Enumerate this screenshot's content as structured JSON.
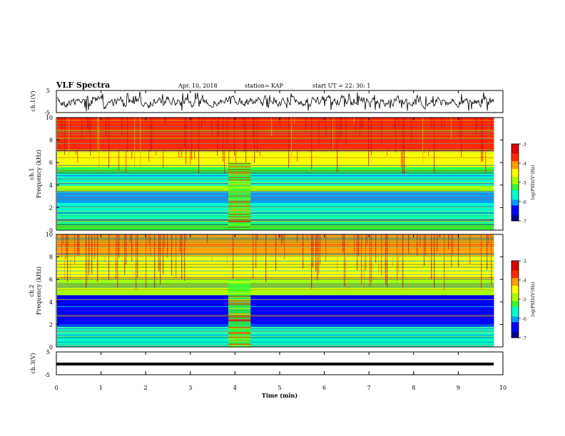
{
  "header": {
    "title": "VLF Spectra",
    "date": "Apr. 10, 2018",
    "station": "station= KAP",
    "start": "start  UT =   22: 30: 1"
  },
  "colors": {
    "scale": [
      "#00008b",
      "#0000ff",
      "#00a0ff",
      "#00ffcc",
      "#33ff33",
      "#aaff00",
      "#ffff00",
      "#ffa000",
      "#ff2800",
      "#dd0000"
    ],
    "trace": "#000000"
  },
  "chart_data": [
    {
      "type": "line",
      "name": "ch1-waveform",
      "ylabel": "ch.1(V)",
      "ylim": [
        -5,
        5
      ],
      "yticks": [
        "5",
        "-5"
      ],
      "xlim": [
        0,
        10
      ],
      "description_of_trace": "noisy waveform oscillating between about -5 and 5 V"
    },
    {
      "type": "heatmap",
      "name": "ch1-spectrogram",
      "ylabel": "ch.1\nFrequency (kHz)",
      "xlim": [
        0,
        10
      ],
      "ylim": [
        0,
        10
      ],
      "yticks": [
        "0",
        "2",
        "4",
        "6",
        "8",
        "10"
      ],
      "data_end_min": 9.8,
      "colorbar": {
        "label": "log(PSD)(V²/Hz)",
        "range": [
          -7,
          -3
        ],
        "ticks": [
          "-3",
          "-4",
          "-5",
          "-6",
          "-7"
        ]
      },
      "gap_interval_min": [
        3.85,
        4.35
      ],
      "bands_khz": [
        {
          "from": 0.0,
          "to": 0.6,
          "level": -5.3
        },
        {
          "from": 0.6,
          "to": 1.0,
          "level": -5.8
        },
        {
          "from": 1.0,
          "to": 2.0,
          "level": -5.6
        },
        {
          "from": 2.0,
          "to": 2.4,
          "level": -5.4
        },
        {
          "from": 2.4,
          "to": 3.4,
          "level": -6.0
        },
        {
          "from": 3.4,
          "to": 3.9,
          "level": -5.0
        },
        {
          "from": 3.9,
          "to": 5.0,
          "level": -5.6
        },
        {
          "from": 5.0,
          "to": 5.6,
          "level": -5.1
        },
        {
          "from": 5.6,
          "to": 7.0,
          "level": -4.4
        },
        {
          "from": 7.0,
          "to": 10.0,
          "level": -3.6
        }
      ]
    },
    {
      "type": "heatmap",
      "name": "ch2-spectrogram",
      "ylabel": "ch.2\nFrequency (kHz)",
      "xlim": [
        0,
        10
      ],
      "ylim": [
        0,
        10
      ],
      "yticks": [
        "0",
        "2",
        "4",
        "6",
        "8",
        "10"
      ],
      "data_end_min": 9.8,
      "colorbar": {
        "label": "log(PSD)(V²/Hz)",
        "range": [
          -7,
          -3
        ],
        "ticks": [
          "-3",
          "-4",
          "-5",
          "-6",
          "-7"
        ]
      },
      "gap_interval_min": [
        3.85,
        4.35
      ],
      "bands_khz": [
        {
          "from": 0.0,
          "to": 1.0,
          "level": -5.4
        },
        {
          "from": 1.0,
          "to": 1.8,
          "level": -5.8
        },
        {
          "from": 1.8,
          "to": 3.2,
          "level": -6.6
        },
        {
          "from": 3.2,
          "to": 4.6,
          "level": -6.3
        },
        {
          "from": 4.6,
          "to": 6.0,
          "level": -5.0
        },
        {
          "from": 6.0,
          "to": 8.0,
          "level": -4.5
        },
        {
          "from": 8.0,
          "to": 10.0,
          "level": -4.0
        }
      ]
    },
    {
      "type": "line",
      "name": "ch3-waveform",
      "ylabel": "ch.3(V)",
      "ylim": [
        -5,
        5
      ],
      "yticks": [
        "5",
        "-5"
      ],
      "xlim": [
        0,
        10
      ],
      "constant_value_V": -1.0
    }
  ],
  "xaxis": {
    "label": "Time (min)",
    "ticks": [
      "0",
      "1",
      "2",
      "3",
      "4",
      "5",
      "6",
      "7",
      "8",
      "9",
      "10"
    ]
  }
}
